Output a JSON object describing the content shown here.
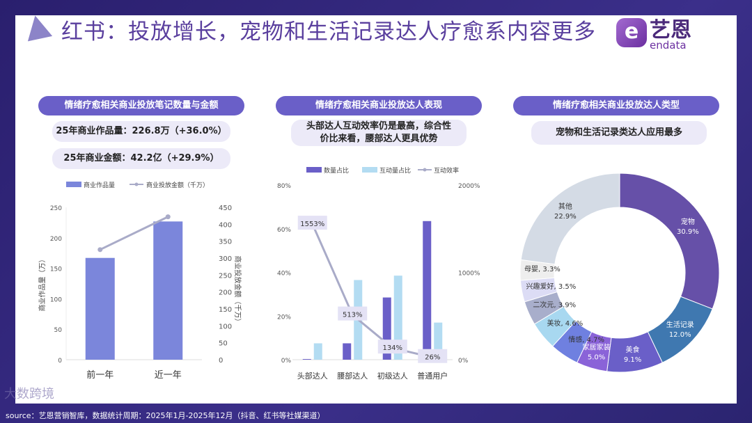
{
  "header": {
    "title": "红书：投放增长，宠物和生活记录达人疗愈系内容更多",
    "brand_cn": "艺恩",
    "brand_en": "endata",
    "brand_mark": "e"
  },
  "panels": [
    {
      "heading": "情绪疗愈相关商业投放笔记数量与金额",
      "notes": [
        "25年商业作品量：226.8万（+36.0%）",
        "25年商业金额：42.2亿（+29.9%）"
      ]
    },
    {
      "heading": "情绪疗愈相关商业投放达人表现",
      "notes": [
        "头部达人互动效率仍是最高，综合性",
        "价比来看，腰部达人更具优势"
      ]
    },
    {
      "heading": "情绪疗愈相关商业投放达人类型",
      "notes": [
        "宠物和生活记录类达人应用最多"
      ]
    }
  ],
  "chart_data": [
    {
      "type": "bar",
      "categories": [
        "前一年",
        "近一年"
      ],
      "series": [
        {
          "name": "商业作品量",
          "kind": "bar",
          "axis": "left",
          "values": [
            167,
            226.8
          ],
          "color": "#7b86db"
        },
        {
          "name": "商业投放金额（千万）",
          "kind": "line",
          "axis": "right",
          "values": [
            325,
            422
          ],
          "color": "#a9abc8"
        }
      ],
      "ylabel": "商业作品量（万）",
      "y2label": "商业投放金额（千万）",
      "ylim": [
        0,
        250
      ],
      "yticks": [
        "0",
        "50",
        "100",
        "150",
        "200",
        "250"
      ],
      "y2lim": [
        0,
        450
      ],
      "y2ticks": [
        "0",
        "50",
        "100",
        "150",
        "200",
        "250",
        "300",
        "350",
        "400",
        "450"
      ]
    },
    {
      "type": "bar",
      "categories": [
        "头部达人",
        "腰部达人",
        "初级达人",
        "普通用户"
      ],
      "series": [
        {
          "name": "数量占比",
          "kind": "bar",
          "axis": "left",
          "values": [
            0.3,
            7.5,
            28.5,
            63.5
          ],
          "color": "#6a5fc8"
        },
        {
          "name": "互动量占比",
          "kind": "bar",
          "axis": "left",
          "values": [
            7.5,
            36.5,
            38.5,
            17
          ],
          "color": "#b3dcf2"
        },
        {
          "name": "互动效率",
          "kind": "line",
          "axis": "right",
          "values": [
            1553,
            513,
            134,
            26
          ],
          "labels": [
            "1553%",
            "513%",
            "134%",
            "26%"
          ],
          "color": "#a9abc8"
        }
      ],
      "ylim": [
        0,
        80
      ],
      "yticks": [
        "0%",
        "20%",
        "40%",
        "60%",
        "80%"
      ],
      "y2lim": [
        0,
        2000
      ],
      "y2ticks": [
        "0%",
        "1000%",
        "2000%"
      ]
    },
    {
      "type": "pie",
      "donut": true,
      "slices": [
        {
          "label": "宠物",
          "value": 30.9,
          "text": "30.9%",
          "color": "#6650a8",
          "tc": "#fff"
        },
        {
          "label": "生活记录",
          "value": 12.0,
          "text": "12.0%",
          "color": "#3f78b0",
          "tc": "#fff"
        },
        {
          "label": "美食",
          "value": 9.1,
          "text": "9.1%",
          "color": "#6a5fc8",
          "tc": "#fff"
        },
        {
          "label": "家居家装",
          "value": 5.0,
          "text": "5.0%",
          "color": "#8a63d8",
          "tc": "#fff"
        },
        {
          "label": "情感",
          "value": 4.7,
          "text": "4.7%",
          "color": "#6f80e0",
          "tc": "#333"
        },
        {
          "label": "美妆",
          "value": 4.6,
          "text": "4.6%",
          "color": "#a8d8f0",
          "tc": "#333"
        },
        {
          "label": "二次元",
          "value": 3.9,
          "text": "3.9%",
          "color": "#a8aecb",
          "tc": "#333"
        },
        {
          "label": "兴趣爱好",
          "value": 3.5,
          "text": "3.5%",
          "color": "#dcdcf5",
          "tc": "#333"
        },
        {
          "label": "母婴",
          "value": 3.3,
          "text": "3.3%",
          "color": "#eeeeee",
          "tc": "#333"
        },
        {
          "label": "其他",
          "value": 22.9,
          "text": "22.9%",
          "color": "#d4dbe5",
          "tc": "#333"
        }
      ]
    }
  ],
  "footer": {
    "source": "source：艺恩营销智库，数据统计周期：2025年1月-2025年12月（抖音、红书等社媒渠道）",
    "watermark": "大数跨境"
  }
}
